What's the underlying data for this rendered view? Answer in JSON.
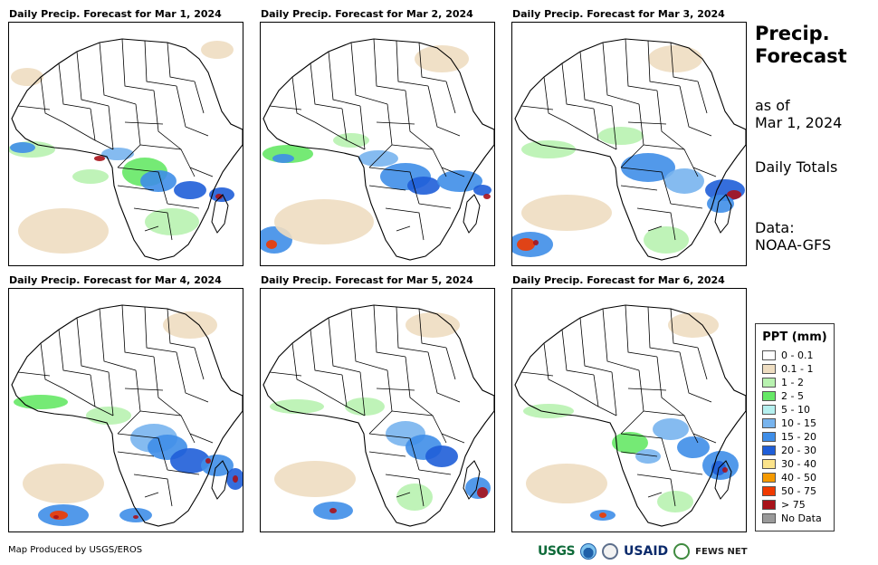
{
  "panels": [
    {
      "title": "Daily Precip. Forecast for Mar 1, 2024"
    },
    {
      "title": "Daily Precip. Forecast for Mar 2, 2024"
    },
    {
      "title": "Daily Precip. Forecast for Mar 3, 2024"
    },
    {
      "title": "Daily Precip. Forecast for Mar 4, 2024"
    },
    {
      "title": "Daily Precip. Forecast for Mar 5, 2024"
    },
    {
      "title": "Daily Precip. Forecast for Mar 6, 2024"
    }
  ],
  "sidebar": {
    "title_line1": "Precip.",
    "title_line2": "Forecast",
    "asof_line1": "as of",
    "asof_line2": "Mar 1, 2024",
    "totals": "Daily Totals",
    "data_line1": "Data:",
    "data_line2": "NOAA-GFS"
  },
  "legend": {
    "title": "PPT (mm)",
    "items": [
      {
        "label": "0 - 0.1",
        "color": "#ffffff"
      },
      {
        "label": "0.1 - 1",
        "color": "#eeddc1"
      },
      {
        "label": "1 - 2",
        "color": "#b8f2b0"
      },
      {
        "label": "2 - 5",
        "color": "#66e866"
      },
      {
        "label": "5 - 10",
        "color": "#b5f0ef"
      },
      {
        "label": "10 - 15",
        "color": "#78b4ee"
      },
      {
        "label": "15 - 20",
        "color": "#3f8ee8"
      },
      {
        "label": "20 - 30",
        "color": "#1f5ed8"
      },
      {
        "label": "30 - 40",
        "color": "#fbe38a"
      },
      {
        "label": "40 - 50",
        "color": "#f59a00"
      },
      {
        "label": "50 - 75",
        "color": "#f03a00"
      },
      {
        "label": "> 75",
        "color": "#a8121a"
      },
      {
        "label": "No Data",
        "color": "#9a9a9a"
      }
    ]
  },
  "footer": {
    "credit": "Map Produced by USGS/EROS",
    "logos": {
      "usgs": "USGS",
      "usaid": "USAID",
      "fews": "FEWS NET"
    }
  }
}
